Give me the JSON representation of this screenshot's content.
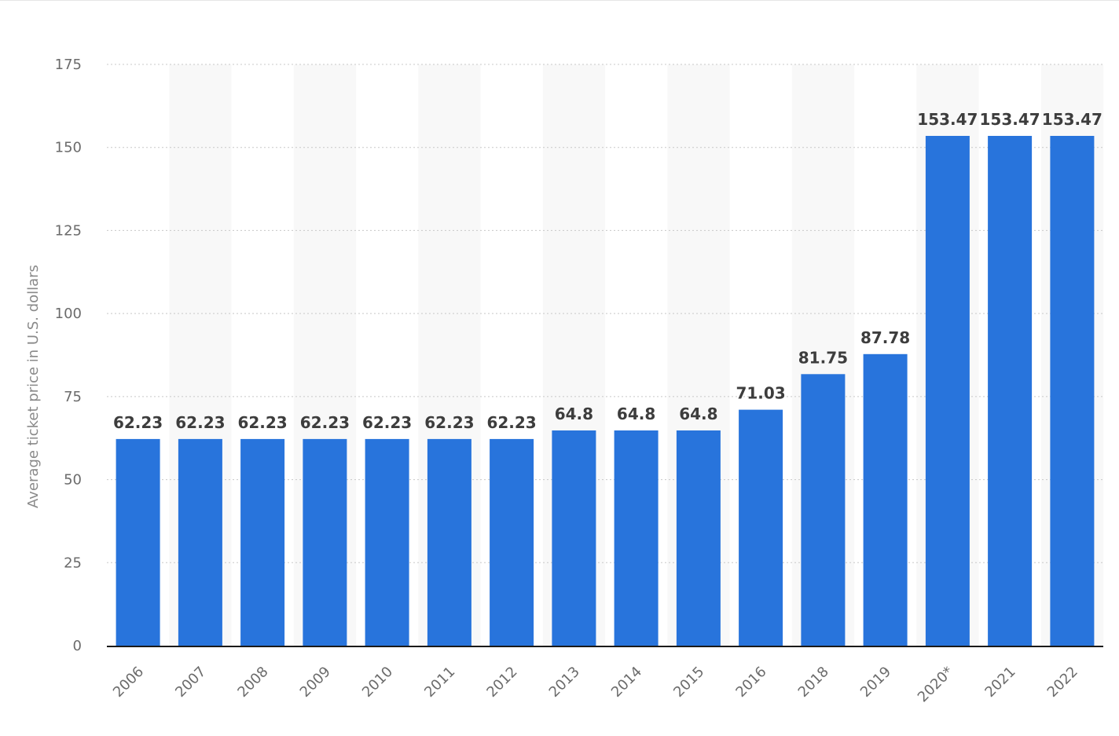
{
  "colors": {
    "bar": "#2874dc",
    "band": "#f8f8f8",
    "grid": "#c8c8c8",
    "axis": "#1a1a1a"
  },
  "chart_data": {
    "type": "bar",
    "title": "",
    "xlabel": "",
    "ylabel": "Average ticket price in U.S. dollars",
    "categories": [
      "2006",
      "2007",
      "2008",
      "2009",
      "2010",
      "2011",
      "2012",
      "2013",
      "2014",
      "2015",
      "2016",
      "2018",
      "2019",
      "2020*",
      "2021",
      "2022"
    ],
    "values": [
      62.23,
      62.23,
      62.23,
      62.23,
      62.23,
      62.23,
      62.23,
      64.8,
      64.8,
      64.8,
      71.03,
      81.75,
      87.78,
      153.47,
      153.47,
      153.47
    ],
    "value_labels": [
      "62.23",
      "62.23",
      "62.23",
      "62.23",
      "62.23",
      "62.23",
      "62.23",
      "64.8",
      "64.8",
      "64.8",
      "71.03",
      "81.75",
      "87.78",
      "153.47",
      "153.47",
      "153.47"
    ],
    "yticks": [
      0,
      25,
      50,
      75,
      100,
      125,
      150,
      175
    ],
    "ylim": [
      0,
      175
    ],
    "grid": true,
    "legend": "none"
  }
}
